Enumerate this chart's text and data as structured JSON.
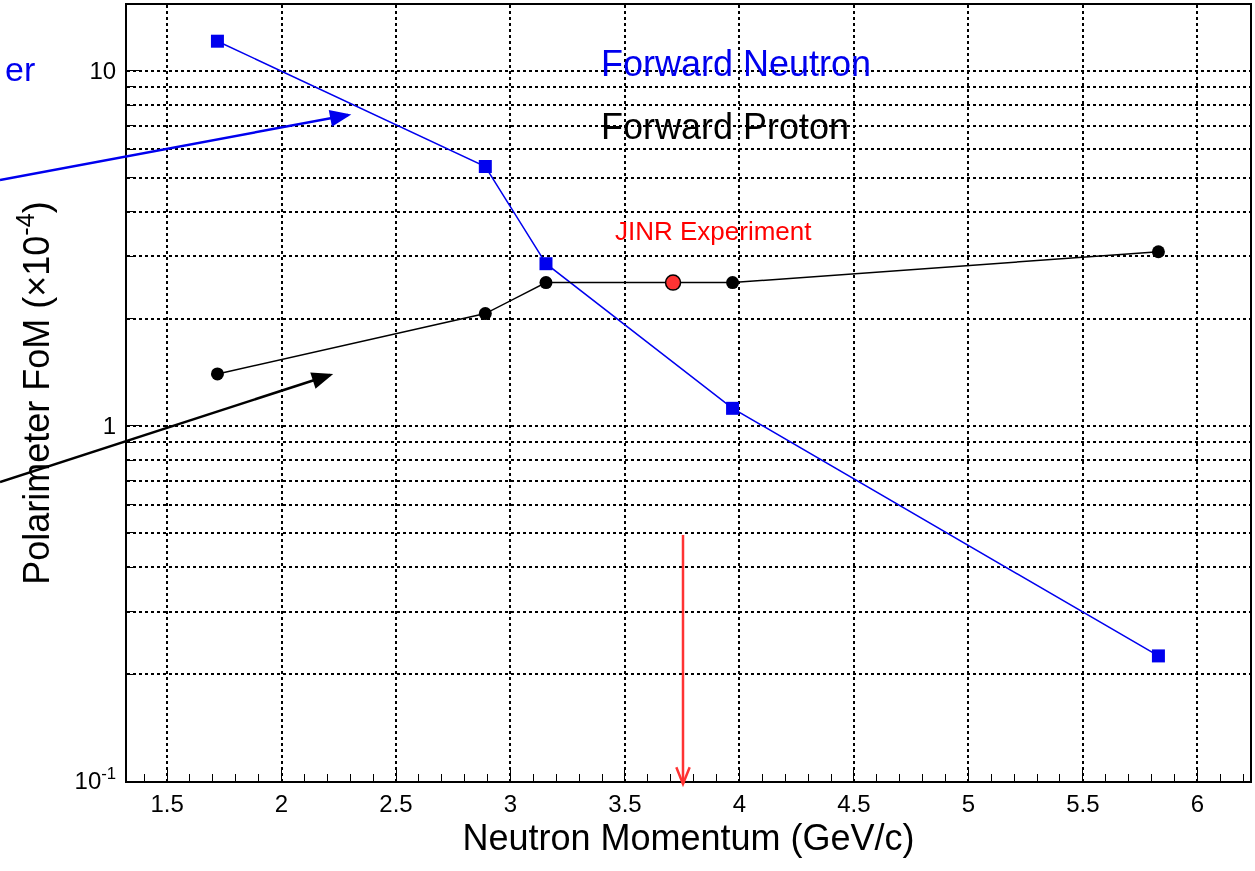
{
  "chart_data": {
    "type": "line",
    "xlabel": "Neutron Momentum (GeV/c)",
    "ylabel": "Polarimeter FoM (×10$^{-4}$)",
    "log": true,
    "grid": true,
    "marker": "circle",
    "xlim": [
      1.325,
      6.23
    ],
    "xticks": [
      1.5,
      2,
      2.5,
      3,
      3.5,
      4,
      4.5,
      5,
      5.5,
      6
    ],
    "ylim": [
      0.1,
      15.3
    ],
    "yticks": [
      {
        "value": 0.1,
        "label": "10$^{-1}$"
      },
      1,
      10
    ],
    "series": [
      {
        "name": "Forward Neutron",
        "color": "#0000ee",
        "marker": "square",
        "x": [
          1.72,
          2.89,
          3.155,
          3.97,
          5.83
        ],
        "values": [
          12.1,
          5.37,
          2.86,
          1.12,
          0.225
        ]
      },
      {
        "name": "Forward Proton",
        "color": "#000000",
        "x": [
          1.72,
          2.89,
          3.155,
          3.97,
          5.83
        ],
        "values": [
          1.4,
          2.07,
          2.53,
          2.53,
          3.09
        ]
      },
      {
        "type": "scatter",
        "color": "#ff3333",
        "x": [
          3.71
        ],
        "values": [
          2.53
        ]
      }
    ],
    "annotations": [
      {
        "text": "JINR Experiment",
        "x": 3.71,
        "y": 2.53
      },
      "er"
    ]
  }
}
